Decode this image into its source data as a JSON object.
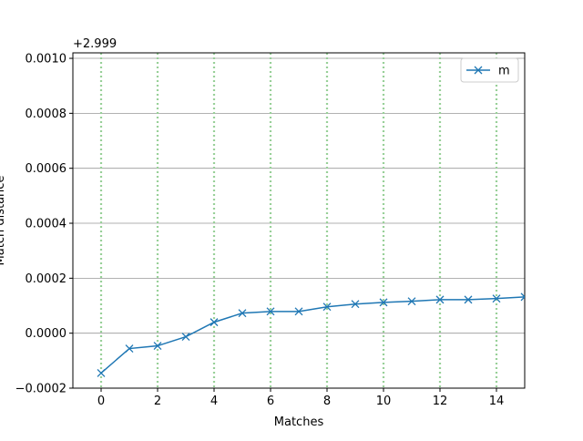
{
  "chart_data": {
    "type": "line",
    "x_label": "Matches",
    "y_label": "Match distance",
    "y_offset_label": "+2.999",
    "x": [
      0,
      1,
      2,
      3,
      4,
      5,
      6,
      7,
      8,
      9,
      10,
      11,
      12,
      13,
      14,
      15
    ],
    "series": [
      {
        "name": "m",
        "color": "#1f77b4",
        "marker": "x",
        "values": [
          -0.000145,
          -5.6e-05,
          -4.6e-05,
          -1.3e-05,
          4e-05,
          7.3e-05,
          7.9e-05,
          7.9e-05,
          9.6e-05,
          0.000106,
          0.000112,
          0.000116,
          0.000122,
          0.000122,
          0.000126,
          0.000132
        ]
      }
    ],
    "xlim": [
      -1,
      15
    ],
    "xticks": [
      0,
      2,
      4,
      6,
      8,
      10,
      12,
      14
    ],
    "ylim": [
      -0.0002,
      0.00102
    ],
    "yticks": [
      {
        "value": -0.0002,
        "label": "−0.0002"
      },
      {
        "value": 0,
        "label": "0.0000"
      },
      {
        "value": 0.0002,
        "label": "0.0002"
      },
      {
        "value": 0.0004,
        "label": "0.0004"
      },
      {
        "value": 0.0006,
        "label": "0.0006"
      },
      {
        "value": 0.0008,
        "label": "0.0008"
      },
      {
        "value": 0.001,
        "label": "0.0010"
      }
    ],
    "y_grid_color": "#999999",
    "x_grid_color": "#98d098",
    "legend": "upper right"
  }
}
